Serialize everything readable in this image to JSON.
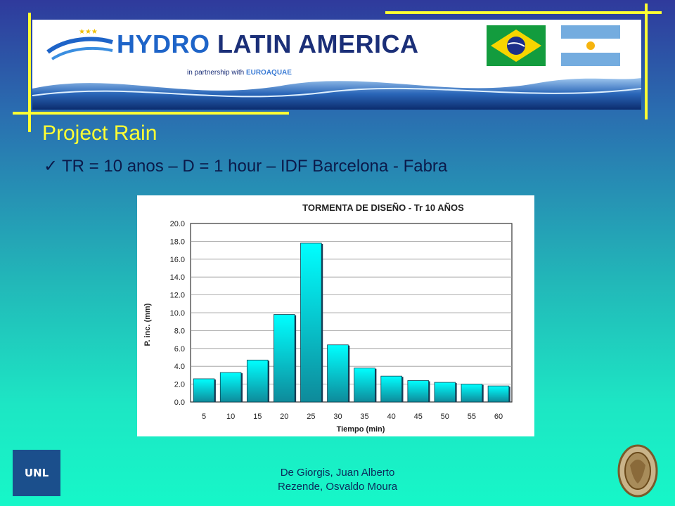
{
  "banner": {
    "logo_word1": "HYDRO",
    "logo_word2": "LATIN AMERICA",
    "partner_text": "in partnership with",
    "partner_brand": "EUROAQUAE",
    "flags": [
      "brazil-flag",
      "argentina-flag"
    ]
  },
  "slide": {
    "title": "Project Rain",
    "bullet": "TR = 10 anos – D = 1 hour – IDF Barcelona - Fabra"
  },
  "chart_data": {
    "type": "bar",
    "title": "TORMENTA DE DISEÑO - Tr 10 AÑOS",
    "xlabel": "Tiempo (min)",
    "ylabel": "P. inc. (mm)",
    "categories": [
      "5",
      "10",
      "15",
      "20",
      "25",
      "30",
      "35",
      "40",
      "45",
      "50",
      "55",
      "60"
    ],
    "values": [
      2.6,
      3.3,
      4.7,
      9.8,
      17.8,
      6.4,
      3.8,
      2.9,
      2.4,
      2.2,
      2.0,
      1.8
    ],
    "ylim": [
      0,
      20
    ],
    "yticks": [
      "0.0",
      "2.0",
      "4.0",
      "6.0",
      "8.0",
      "10.0",
      "12.0",
      "14.0",
      "16.0",
      "18.0",
      "20.0"
    ],
    "grid": true,
    "legend": "none",
    "bar_color_top": "#00ffff",
    "bar_color_bottom": "#0e8a9a"
  },
  "footer": {
    "line1": "De Giorgis, Juan Alberto",
    "line2": "Rezende, Osvaldo Moura",
    "unl_logo": "UNL"
  },
  "colors": {
    "accent_yellow": "#ffff33",
    "bg_top": "#2f3a9c",
    "bg_bottom": "#16f7c8"
  }
}
